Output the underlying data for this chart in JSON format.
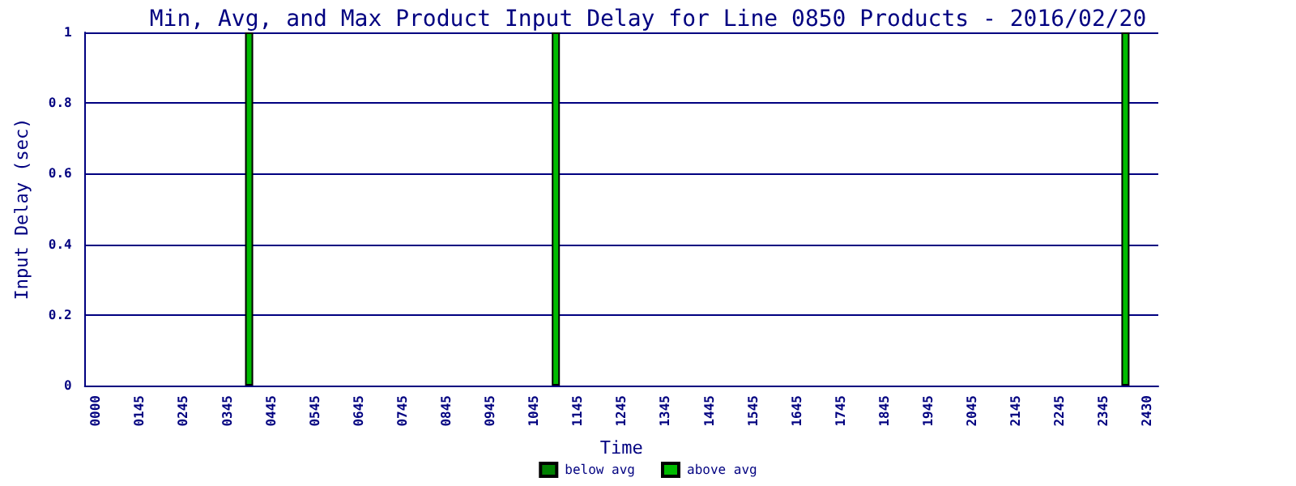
{
  "chart_data": {
    "type": "bar",
    "title": "Min, Avg, and Max Product Input Delay for Line 0850 Products - 2016/02/20",
    "xlabel": "Time",
    "ylabel": "Input Delay (sec)",
    "categories": [
      "0000",
      null,
      "0145",
      null,
      "0245",
      null,
      "0345",
      null,
      "0445",
      null,
      "0545",
      null,
      "0645",
      null,
      "0745",
      null,
      "0845",
      null,
      "0945",
      null,
      "1045",
      null,
      "1145",
      null,
      "1245",
      null,
      "1345",
      null,
      "1445",
      null,
      "1545",
      null,
      "1645",
      null,
      "1745",
      null,
      "1845",
      null,
      "1945",
      null,
      "2045",
      null,
      "2145",
      null,
      "2245",
      null,
      "2345",
      null,
      "2430"
    ],
    "series": [
      {
        "name": "below avg",
        "color": "#008000",
        "values": [
          null,
          null,
          null,
          null,
          null,
          null,
          null,
          null,
          null,
          null,
          null,
          null,
          null,
          null,
          null,
          null,
          null,
          null,
          null,
          null,
          null,
          null,
          null,
          null,
          null,
          null,
          null,
          null,
          null,
          null,
          null,
          null,
          null,
          null,
          null,
          null,
          null,
          null,
          null,
          null,
          null,
          null,
          null,
          null,
          null,
          null,
          null,
          null,
          null
        ]
      },
      {
        "name": "above avg",
        "color": "#00bb00",
        "values": [
          null,
          null,
          null,
          null,
          null,
          null,
          null,
          1,
          null,
          null,
          null,
          null,
          null,
          null,
          null,
          null,
          null,
          null,
          null,
          null,
          null,
          1,
          null,
          null,
          null,
          null,
          null,
          null,
          null,
          null,
          null,
          null,
          null,
          null,
          null,
          null,
          null,
          null,
          null,
          null,
          null,
          null,
          null,
          null,
          null,
          null,
          null,
          1,
          null
        ]
      }
    ],
    "stacked": true,
    "ylim": [
      0,
      1
    ],
    "yticks": [
      0,
      0.2,
      0.4,
      0.6,
      0.8,
      1
    ],
    "grid": "y",
    "legend": "bottom"
  }
}
